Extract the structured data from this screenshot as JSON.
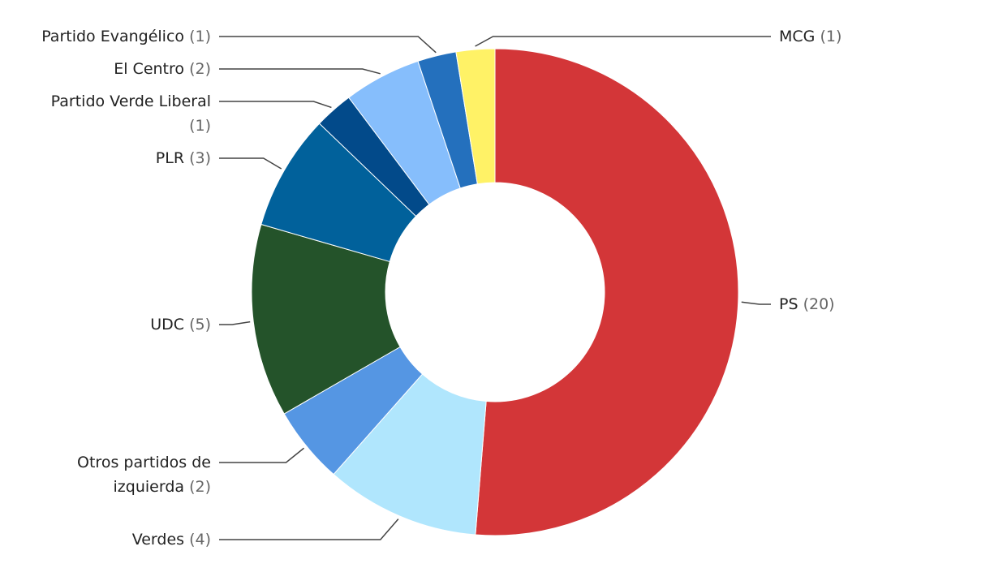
{
  "chart_data": {
    "type": "donut",
    "categories": [
      "PS",
      "Verdes",
      "Otros partidos de izquierda",
      "UDC",
      "PLR",
      "Partido Verde Liberal",
      "El Centro",
      "Partido Evangélico",
      "MCG"
    ],
    "values": [
      20,
      4,
      2,
      5,
      3,
      1,
      2,
      1,
      1
    ],
    "value_labels": [
      "(20)",
      "(4)",
      "(2)",
      "(5)",
      "(3)",
      "(1)",
      "(2)",
      "(1)",
      "(1)"
    ],
    "colors": [
      "#d33638",
      "#b0e6fd",
      "#5596e3",
      "#24532a",
      "#01619b",
      "#024a8a",
      "#86befc",
      "#2470bd",
      "#fff266"
    ]
  }
}
